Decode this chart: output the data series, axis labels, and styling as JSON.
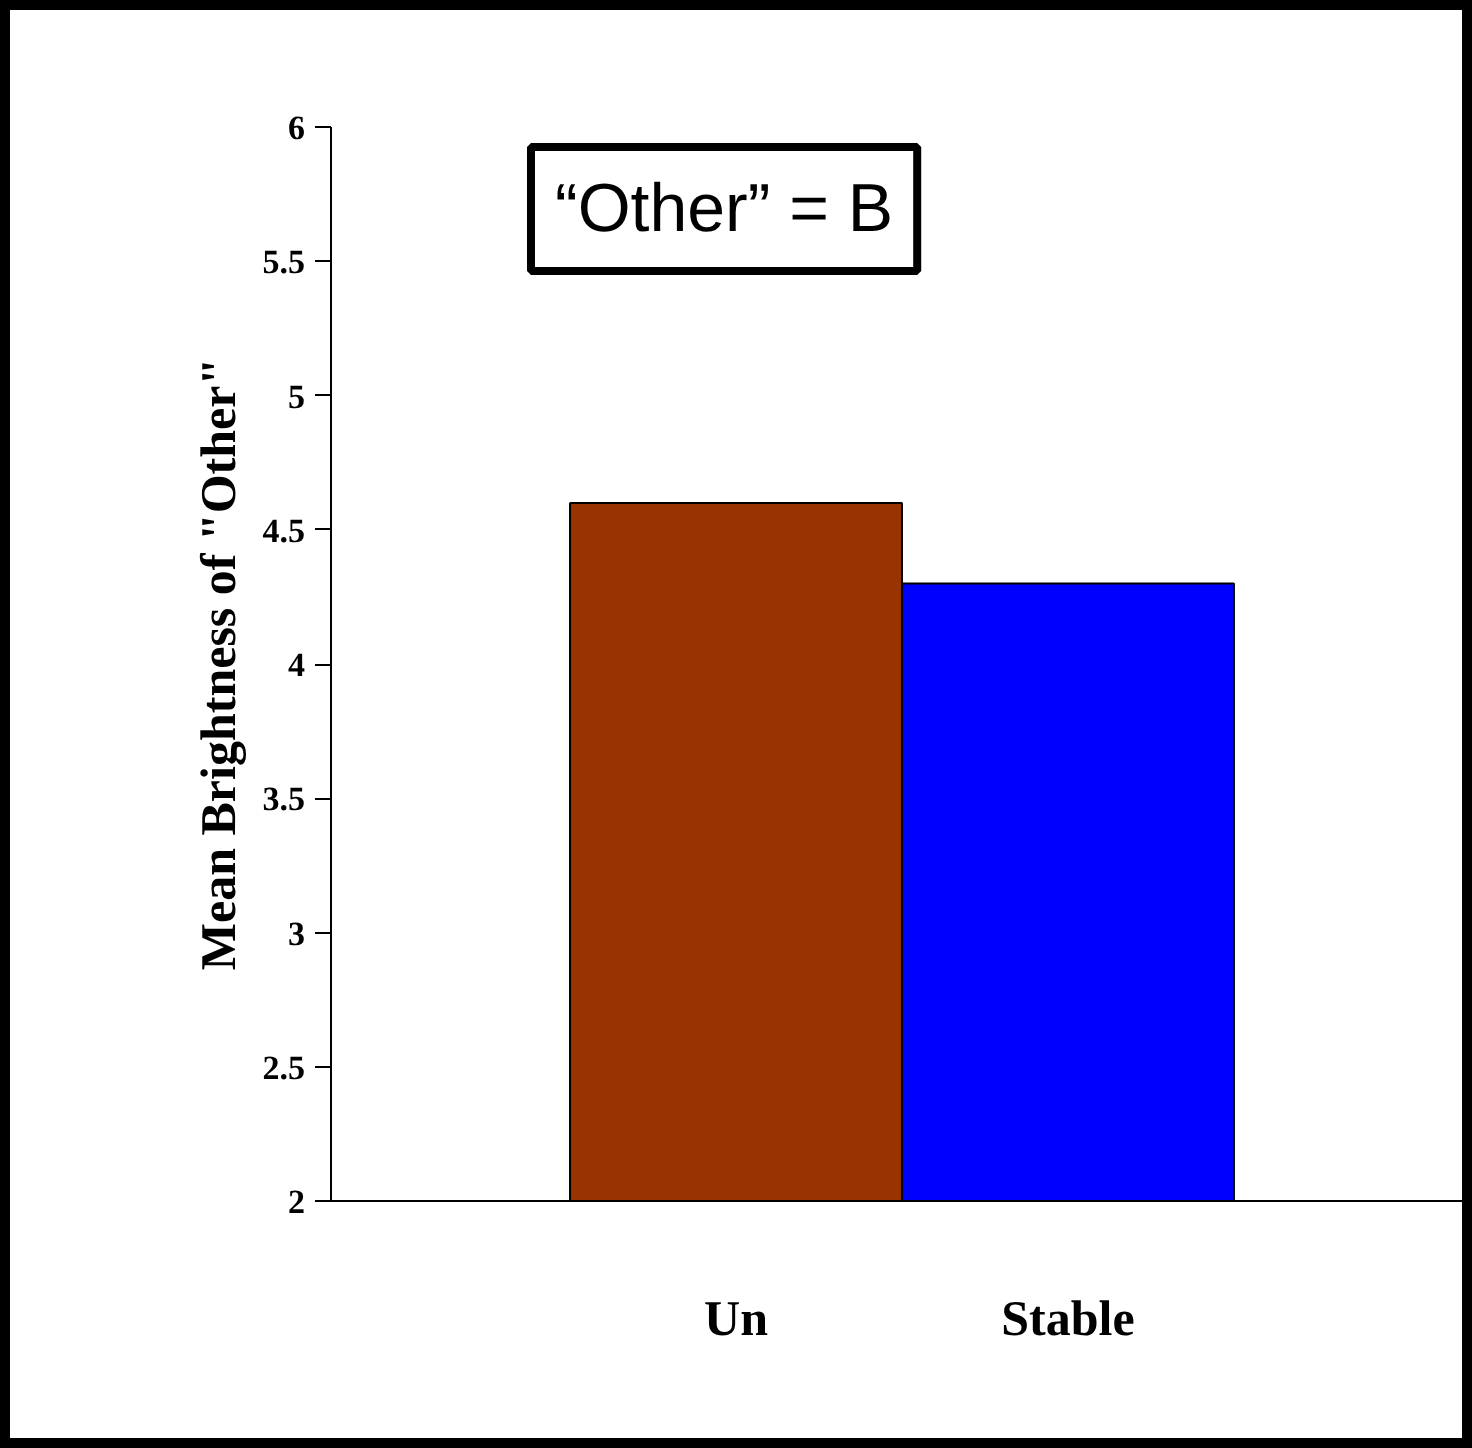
{
  "chart_data": {
    "type": "bar",
    "categories": [
      "Un",
      "Stable"
    ],
    "values": [
      4.6,
      4.3
    ],
    "colors": [
      "#993300",
      "#0000ff"
    ],
    "ylabel": "Mean Brightness of \"Other\"",
    "ylim": [
      2,
      6
    ],
    "yticks": [
      2,
      2.5,
      3,
      3.5,
      4,
      4.5,
      5,
      5.5,
      6
    ],
    "annotations": [
      "“Other” = B"
    ]
  }
}
